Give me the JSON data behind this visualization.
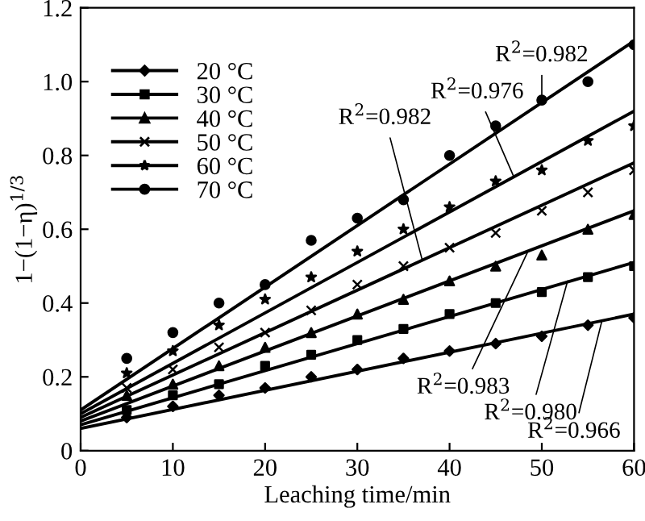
{
  "chart_data": {
    "type": "scatter",
    "xlabel": "Leaching time/min",
    "ylabel": "1−(1−η)$^{1/3}$",
    "xlim": [
      0,
      60
    ],
    "xticks": [
      0,
      10,
      20,
      30,
      40,
      50,
      60
    ],
    "ylim": [
      0,
      1.2
    ],
    "yticks": [
      0,
      0.2,
      0.4,
      0.6,
      0.8,
      {
        "value": 1,
        "label": "1.0"
      },
      1.2
    ],
    "grid": false,
    "legend": "top left",
    "series": [
      {
        "name": "20 °C",
        "color": "#000000",
        "marker": "diamond",
        "x": [
          5,
          10,
          15,
          20,
          25,
          30,
          35,
          40,
          45,
          50,
          55,
          60
        ],
        "values": [
          0.09,
          0.12,
          0.15,
          0.17,
          0.2,
          0.22,
          0.25,
          0.27,
          0.29,
          0.31,
          0.34,
          0.36
        ]
      },
      {
        "name": "30 °C",
        "color": "#000000",
        "marker": "square",
        "x": [
          5,
          10,
          15,
          20,
          25,
          30,
          35,
          40,
          45,
          50,
          55,
          60
        ],
        "values": [
          0.11,
          0.15,
          0.18,
          0.23,
          0.26,
          0.3,
          0.33,
          0.37,
          0.4,
          0.43,
          0.47,
          0.5
        ]
      },
      {
        "name": "40 °C",
        "color": "#000000",
        "marker": "triangle",
        "x": [
          5,
          10,
          15,
          20,
          25,
          30,
          35,
          40,
          45,
          50,
          55,
          60
        ],
        "values": [
          0.15,
          0.18,
          0.23,
          0.28,
          0.32,
          0.37,
          0.41,
          0.46,
          0.5,
          0.53,
          0.6,
          0.64
        ]
      },
      {
        "name": "50 °C",
        "color": "#000000",
        "marker": "cross",
        "x": [
          5,
          10,
          15,
          20,
          25,
          30,
          35,
          40,
          45,
          50,
          55,
          60
        ],
        "values": [
          0.17,
          0.22,
          0.28,
          0.32,
          0.38,
          0.45,
          0.5,
          0.55,
          0.59,
          0.65,
          0.7,
          0.76
        ]
      },
      {
        "name": "60 °C",
        "color": "#000000",
        "marker": "star",
        "x": [
          5,
          10,
          15,
          20,
          25,
          30,
          35,
          40,
          45,
          50,
          55,
          60
        ],
        "values": [
          0.21,
          0.27,
          0.34,
          0.41,
          0.47,
          0.54,
          0.6,
          0.66,
          0.73,
          0.76,
          0.84,
          0.88
        ]
      },
      {
        "name": "70 °C",
        "color": "#000000",
        "marker": "circle",
        "x": [
          5,
          10,
          15,
          20,
          25,
          30,
          35,
          40,
          45,
          50,
          55,
          60
        ],
        "values": [
          0.25,
          0.32,
          0.4,
          0.45,
          0.57,
          0.63,
          0.68,
          0.8,
          0.88,
          0.95,
          1.0,
          1.1
        ]
      },
      {
        "type": "line",
        "color": "#000000",
        "marker": "none",
        "x": [
          0,
          60
        ],
        "values": [
          0.06,
          0.37
        ]
      },
      {
        "type": "line",
        "color": "#000000",
        "marker": "none",
        "x": [
          0,
          60
        ],
        "values": [
          0.07,
          0.51
        ]
      },
      {
        "type": "line",
        "color": "#000000",
        "marker": "none",
        "x": [
          0,
          60
        ],
        "values": [
          0.08,
          0.65
        ]
      },
      {
        "type": "line",
        "color": "#000000",
        "marker": "none",
        "x": [
          0,
          60
        ],
        "values": [
          0.09,
          0.78
        ]
      },
      {
        "type": "line",
        "color": "#000000",
        "marker": "none",
        "x": [
          0,
          60
        ],
        "values": [
          0.1,
          0.92
        ]
      },
      {
        "type": "line",
        "color": "#000000",
        "marker": "none",
        "x": [
          0,
          60
        ],
        "values": [
          0.11,
          1.11
        ]
      }
    ],
    "annotations": [
      {
        "text": "R$^{2}$=0.982",
        "x": 50,
        "y": 0.94
      },
      {
        "text": "R$^{2}$=0.976",
        "x": 47,
        "y": 0.74
      },
      {
        "text": "R$^{2}$=0.982",
        "x": 37,
        "y": 0.52
      },
      {
        "text": "R$^{2}$=0.983",
        "x": 48.5,
        "y": 0.54
      },
      {
        "text": "R$^{2}$=0.980",
        "x": 52.8,
        "y": 0.46
      },
      {
        "text": "R$^{2}$=0.966",
        "x": 56.5,
        "y": 0.35
      }
    ]
  }
}
